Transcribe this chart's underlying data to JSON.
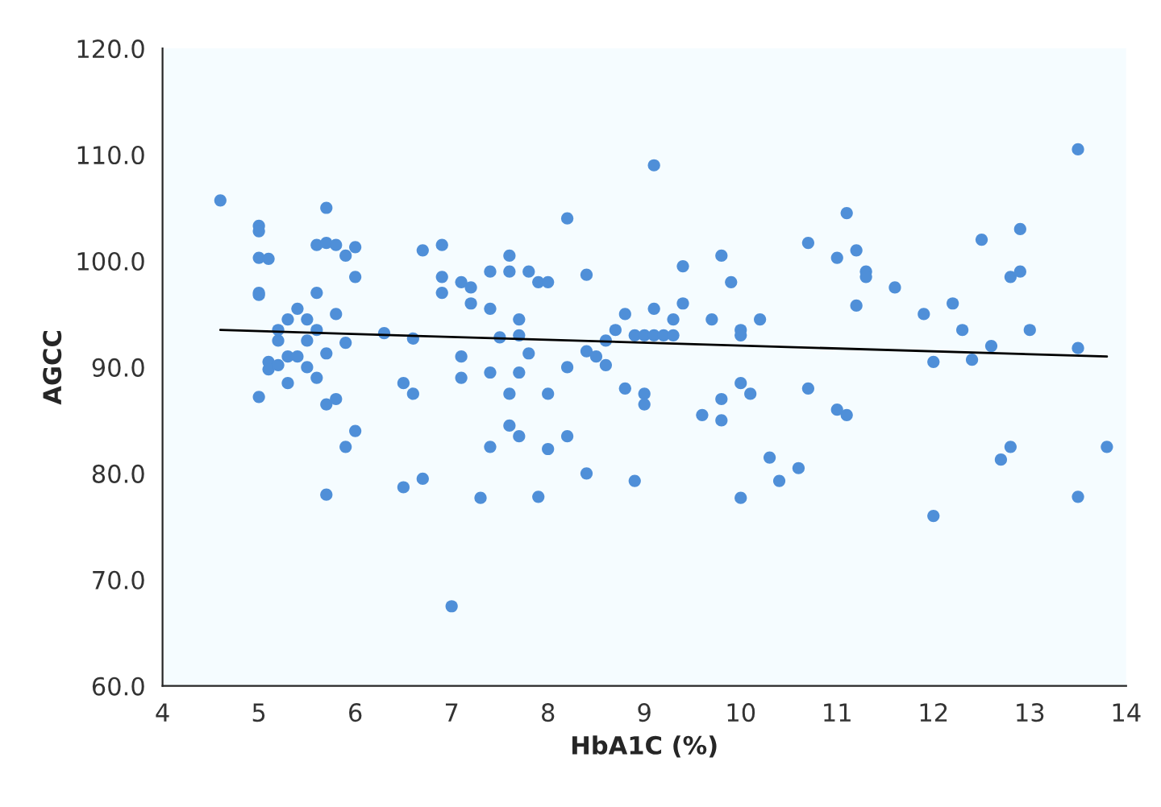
{
  "chart_data": {
    "type": "scatter",
    "xlabel": "HbA1C (%)",
    "ylabel": "AGCC",
    "xlim": [
      4,
      14
    ],
    "xticks": [
      4,
      5,
      6,
      7,
      8,
      9,
      10,
      11,
      12,
      13,
      14
    ],
    "ylim": [
      60,
      120
    ],
    "yticks": [
      {
        "value": 60,
        "label": "60.0"
      },
      {
        "value": 70,
        "label": "70.0"
      },
      {
        "value": 80,
        "label": "80.0"
      },
      {
        "value": 90,
        "label": "90.0"
      },
      {
        "value": 100,
        "label": "100.0"
      },
      {
        "value": 110,
        "label": "110.0"
      },
      {
        "value": 120,
        "label": "120.0"
      }
    ],
    "grid": false,
    "legend": false,
    "marker": "circle",
    "series": [
      {
        "color": "#4f8fd8",
        "x": [
          4.6,
          5.0,
          5.0,
          5.0,
          5.0,
          5.0,
          5.0,
          5.1,
          5.1,
          5.1,
          5.2,
          5.2,
          5.2,
          5.3,
          5.3,
          5.3,
          5.4,
          5.4,
          5.5,
          5.5,
          5.5,
          5.6,
          5.6,
          5.6,
          5.6,
          5.7,
          5.7,
          5.7,
          5.7,
          5.7,
          5.8,
          5.8,
          5.8,
          5.9,
          5.9,
          5.9,
          6.0,
          6.0,
          6.0,
          6.3,
          6.5,
          6.5,
          6.6,
          6.6,
          6.7,
          6.7,
          6.9,
          6.9,
          6.9,
          7.0,
          7.1,
          7.1,
          7.1,
          7.2,
          7.2,
          7.3,
          7.4,
          7.4,
          7.4,
          7.4,
          7.5,
          7.6,
          7.6,
          7.6,
          7.6,
          7.7,
          7.7,
          7.7,
          7.7,
          7.8,
          7.8,
          7.9,
          7.9,
          8.0,
          8.0,
          8.0,
          8.2,
          8.2,
          8.2,
          8.4,
          8.4,
          8.4,
          8.5,
          8.6,
          8.6,
          8.7,
          8.8,
          8.8,
          8.9,
          8.9,
          9.0,
          9.0,
          9.0,
          9.1,
          9.1,
          9.1,
          9.2,
          9.3,
          9.3,
          9.4,
          9.4,
          9.6,
          9.7,
          9.8,
          9.8,
          9.8,
          9.9,
          10.0,
          10.0,
          10.0,
          10.0,
          10.1,
          10.2,
          10.3,
          10.4,
          10.6,
          10.7,
          10.7,
          11.0,
          11.0,
          11.1,
          11.1,
          11.2,
          11.2,
          11.3,
          11.3,
          11.6,
          11.9,
          12.0,
          12.0,
          12.2,
          12.3,
          12.4,
          12.5,
          12.6,
          12.7,
          12.8,
          12.8,
          12.9,
          12.9,
          13.0,
          13.5,
          13.5,
          13.5,
          13.8
        ],
        "values": [
          105.7,
          103.3,
          102.8,
          100.3,
          97.0,
          87.2,
          96.8,
          100.2,
          90.5,
          89.8,
          90.2,
          92.5,
          93.5,
          94.5,
          91,
          88.5,
          95.5,
          91,
          94.5,
          92.5,
          90,
          101.5,
          97,
          93.5,
          89,
          105,
          101.7,
          91.3,
          86.5,
          78,
          101.5,
          87,
          95,
          100.5,
          92.3,
          82.5,
          101.3,
          98.5,
          84,
          93.2,
          88.5,
          78.7,
          92.7,
          87.5,
          101,
          79.5,
          101.5,
          98.5,
          97,
          67.5,
          98,
          91,
          89,
          97.5,
          96,
          77.7,
          99,
          95.5,
          89.5,
          82.5,
          92.8,
          100.5,
          99,
          87.5,
          84.5,
          94.5,
          93,
          89.5,
          83.5,
          99,
          91.3,
          98,
          77.8,
          98,
          87.5,
          82.3,
          104,
          90,
          83.5,
          98.7,
          91.5,
          80,
          91,
          92.5,
          90.2,
          93.5,
          95,
          88,
          93,
          79.3,
          93,
          87.5,
          86.5,
          109,
          95.5,
          93,
          93,
          94.5,
          93,
          99.5,
          96,
          85.5,
          94.5,
          100.5,
          87,
          85,
          98,
          93.5,
          88.5,
          77.7,
          93,
          87.5,
          94.5,
          81.5,
          79.3,
          80.5,
          101.7,
          88,
          100.3,
          86,
          104.5,
          85.5,
          101,
          95.8,
          99,
          98.5,
          97.5,
          95,
          90.5,
          76,
          96,
          93.5,
          90.7,
          102,
          92,
          81.3,
          98.5,
          82.5,
          103,
          99,
          93.5,
          110.5,
          91.8,
          77.8,
          82.5
        ]
      },
      {
        "type": "line",
        "color": "#000000",
        "marker": "none",
        "x": [
          4.6,
          13.8
        ],
        "values": [
          93.5,
          91.0
        ]
      }
    ]
  }
}
